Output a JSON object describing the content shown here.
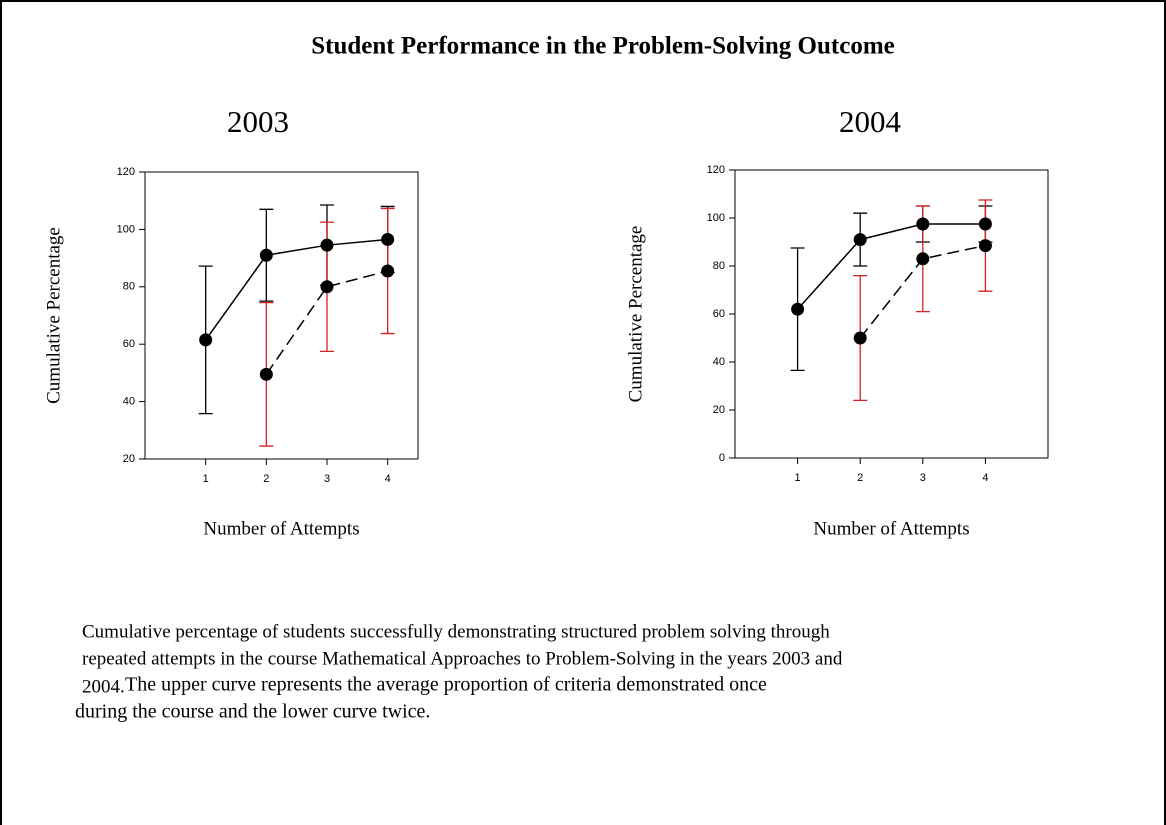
{
  "title": "Student Performance in the Problem-Solving Outcome",
  "chart_data": [
    {
      "type": "errorbar-line",
      "title": "2003",
      "x_label": "Number of Attempts",
      "y_label": "Cumulative Percentage",
      "xlim": [
        0,
        4.5
      ],
      "xticks": [
        1,
        2,
        3,
        4
      ],
      "ylim": [
        20,
        120
      ],
      "yticks": [
        20,
        40,
        60,
        80,
        100,
        120
      ],
      "series": [
        {
          "color": "#000000",
          "error_color": "#000000",
          "dashed": false,
          "x": [
            1,
            2,
            3,
            4
          ],
          "values": [
            61.5,
            91,
            94.5,
            96.5
          ],
          "errors": [
            25.7,
            16,
            14,
            11.5
          ]
        },
        {
          "color": "#000000",
          "error_color": "#d42020",
          "dashed": true,
          "x": [
            2,
            3,
            4
          ],
          "values": [
            49.5,
            80,
            85.5
          ],
          "errors": [
            25,
            22.5,
            21.8
          ]
        }
      ]
    },
    {
      "type": "errorbar-line",
      "title": "2004",
      "x_label": "Number of Attempts",
      "y_label": "Cumulative Percentage",
      "xlim": [
        0,
        5
      ],
      "xticks": [
        1,
        2,
        3,
        4
      ],
      "ylim": [
        0,
        120
      ],
      "yticks": [
        0,
        20,
        40,
        60,
        80,
        100,
        120
      ],
      "series": [
        {
          "color": "#000000",
          "error_color": "#000000",
          "dashed": false,
          "x": [
            1,
            2,
            3,
            4
          ],
          "values": [
            62,
            91,
            97.5,
            97.5
          ],
          "errors": [
            25.5,
            11,
            7.5,
            7.5
          ]
        },
        {
          "color": "#000000",
          "error_color": "#d42020",
          "dashed": true,
          "x": [
            2,
            3,
            4
          ],
          "values": [
            50,
            83,
            88.5
          ],
          "errors": [
            26,
            22,
            19
          ]
        }
      ]
    }
  ],
  "caption": {
    "lines": [
      "Cumulative percentage of students successfully demonstrating structured problem solving through",
      "repeated attempts in the course Mathematical Approaches to Problem-Solving in the years 2003 and",
      "2004.",
      "The upper curve represents the average proportion of criteria demonstrated once",
      "during the course and the lower curve twice."
    ]
  }
}
